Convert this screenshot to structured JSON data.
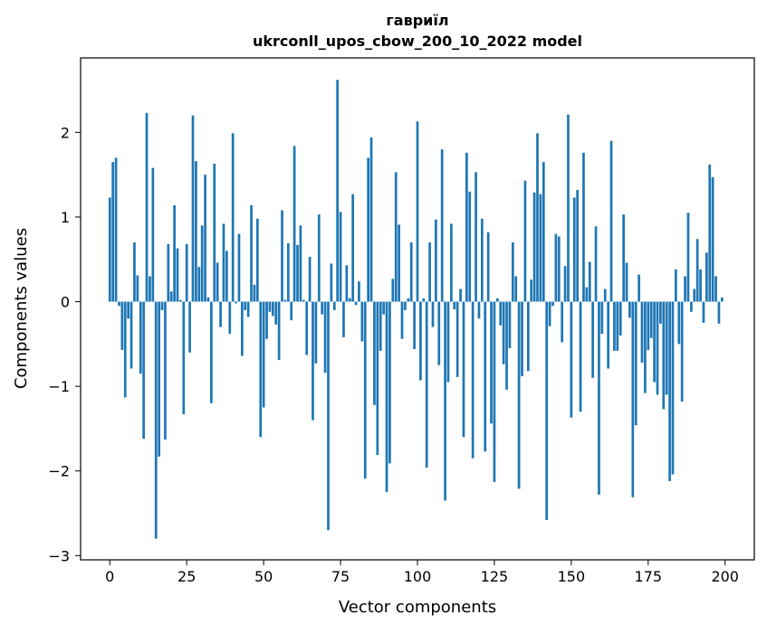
{
  "title_line1": "гавриїл",
  "title_line2": "ukrconll_upos_cbow_200_10_2022 model",
  "colors": {
    "bar": "#1f77b4",
    "axis": "#000000",
    "background": "#ffffff"
  },
  "chart_data": {
    "type": "bar",
    "title": "гавриїл ukrconll_upos_cbow_200_10_2022 model",
    "xlabel": "Vector components",
    "ylabel": "Components values",
    "xlim": [
      -9.5,
      209.5
    ],
    "ylim": [
      -3.05,
      2.88
    ],
    "grid": false,
    "x_ticks": [
      0,
      25,
      50,
      75,
      100,
      125,
      150,
      175,
      200
    ],
    "x_tick_labels": [
      "0",
      "25",
      "50",
      "75",
      "100",
      "125",
      "150",
      "175",
      "200"
    ],
    "y_ticks": [
      -3,
      -2,
      -1,
      0,
      1,
      2
    ],
    "y_tick_labels": [
      "−3",
      "−2",
      "−1",
      "0",
      "1",
      "2"
    ],
    "values": [
      1.23,
      1.65,
      1.7,
      -0.05,
      -0.57,
      -1.13,
      -0.2,
      -0.79,
      0.7,
      0.31,
      -0.85,
      -1.62,
      2.23,
      0.3,
      1.58,
      -2.8,
      -1.83,
      -0.1,
      -1.63,
      0.68,
      0.12,
      1.14,
      0.63,
      0.02,
      -1.33,
      0.68,
      -0.6,
      2.2,
      1.66,
      0.41,
      0.9,
      1.5,
      0.05,
      -1.2,
      1.63,
      0.46,
      -0.3,
      0.92,
      0.6,
      -0.38,
      1.99,
      -0.02,
      0.8,
      -0.64,
      -0.1,
      -0.18,
      1.14,
      0.2,
      0.98,
      -1.6,
      -1.25,
      -0.44,
      -0.12,
      -0.17,
      -0.27,
      -0.69,
      1.08,
      0.02,
      0.69,
      -0.22,
      1.84,
      0.67,
      0.9,
      0.02,
      -0.63,
      0.53,
      -1.4,
      -0.73,
      1.03,
      -0.15,
      -0.84,
      -2.7,
      0.45,
      -0.1,
      2.62,
      1.06,
      -0.42,
      0.43,
      0.04,
      1.27,
      -0.04,
      0.24,
      -0.47,
      -2.09,
      1.7,
      1.94,
      -1.22,
      -1.81,
      -0.58,
      -0.15,
      -2.25,
      -1.91,
      0.27,
      1.53,
      0.91,
      -0.44,
      -0.1,
      0.04,
      0.7,
      -0.56,
      2.13,
      -0.93,
      0.04,
      -1.96,
      0.7,
      -0.3,
      0.97,
      -0.75,
      1.8,
      -2.35,
      -0.95,
      0.92,
      -0.09,
      -0.89,
      0.15,
      -1.6,
      1.76,
      1.3,
      -1.85,
      1.53,
      -0.2,
      0.98,
      -1.77,
      0.82,
      -1.44,
      -2.13,
      0.04,
      -0.28,
      -0.74,
      -1.04,
      -0.55,
      0.7,
      0.3,
      -2.21,
      -0.88,
      1.43,
      -0.82,
      0.26,
      1.29,
      1.99,
      1.27,
      1.65,
      -2.58,
      -0.29,
      -0.05,
      0.8,
      0.77,
      -0.48,
      0.42,
      2.21,
      -1.37,
      1.23,
      1.32,
      -1.3,
      1.76,
      0.17,
      0.47,
      -0.9,
      0.89,
      -2.28,
      -0.38,
      0.15,
      -0.79,
      1.9,
      -0.58,
      -0.58,
      -0.4,
      1.03,
      0.46,
      -0.19,
      -2.31,
      -1.46,
      0.32,
      -0.72,
      -1.08,
      -0.57,
      -0.43,
      -0.95,
      -1.1,
      -0.26,
      -1.27,
      -1.1,
      -2.12,
      -2.04,
      0.38,
      -0.5,
      -1.18,
      0.3,
      1.05,
      -0.12,
      0.15,
      0.74,
      0.38,
      -0.25,
      0.58,
      1.62,
      1.47,
      0.3,
      -0.26,
      0.05
    ]
  }
}
